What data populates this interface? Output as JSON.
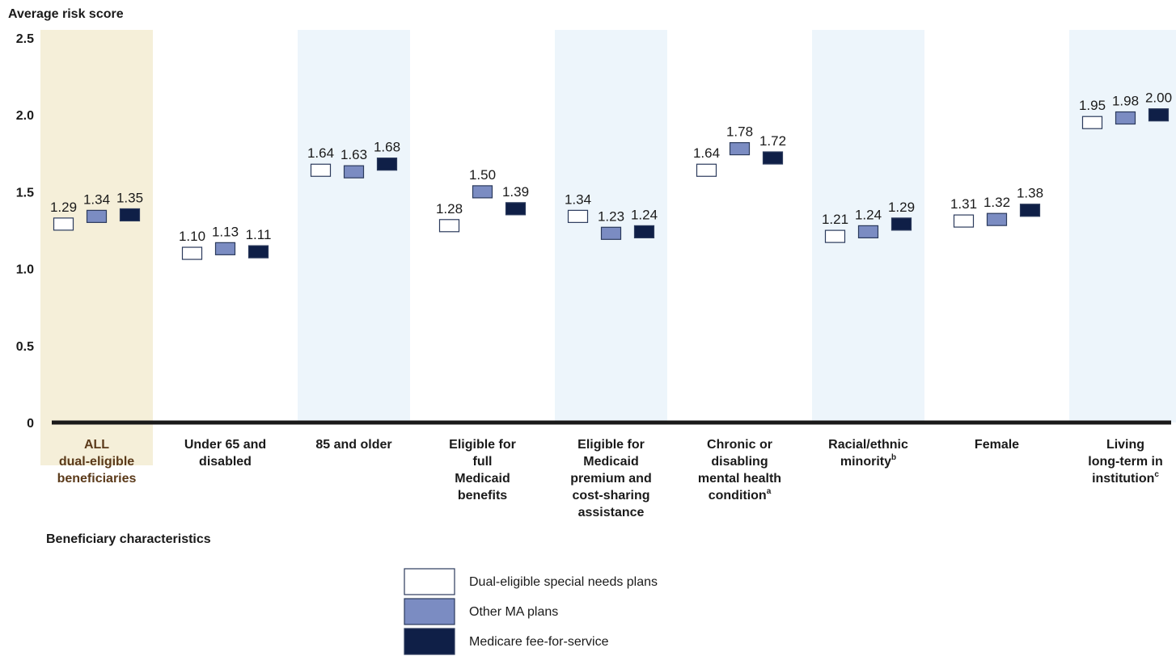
{
  "chart_data": {
    "type": "bar",
    "title": "",
    "ylabel": "Average risk score",
    "xlabel": "Beneficiary characteristics",
    "ylim": [
      0,
      2.5
    ],
    "yticks": [
      "0",
      "0.5",
      "1.0",
      "1.5",
      "2.0",
      "2.5"
    ],
    "grid": false,
    "legend_position": "bottom-center",
    "categories": [
      {
        "lines": [
          "ALL",
          "dual-eligible",
          "beneficiaries"
        ],
        "footnote": "",
        "highlight": "all"
      },
      {
        "lines": [
          "Under 65 and",
          "disabled"
        ],
        "footnote": "",
        "highlight": "none"
      },
      {
        "lines": [
          "85 and older"
        ],
        "footnote": "",
        "highlight": "shaded"
      },
      {
        "lines": [
          "Eligible for",
          "full",
          "Medicaid",
          "benefits"
        ],
        "footnote": "",
        "highlight": "none"
      },
      {
        "lines": [
          "Eligible for",
          "Medicaid",
          "premium and",
          "cost-sharing",
          "assistance"
        ],
        "footnote": "",
        "highlight": "shaded"
      },
      {
        "lines": [
          "Chronic or",
          "disabling",
          "mental health",
          "condition"
        ],
        "footnote": "a",
        "highlight": "none"
      },
      {
        "lines": [
          "Racial/ethnic",
          "minority"
        ],
        "footnote": "b",
        "highlight": "shaded"
      },
      {
        "lines": [
          "Female"
        ],
        "footnote": "",
        "highlight": "none"
      },
      {
        "lines": [
          "Living",
          "long-term in",
          "institution"
        ],
        "footnote": "c",
        "highlight": "shaded"
      }
    ],
    "series": [
      {
        "name": "Dual-eligible special needs plans",
        "color": "#ffffff",
        "values": [
          1.29,
          1.1,
          1.64,
          1.28,
          1.34,
          1.64,
          1.21,
          1.31,
          1.95
        ],
        "labels": [
          "1.29",
          "1.10",
          "1.64",
          "1.28",
          "1.34",
          "1.64",
          "1.21",
          "1.31",
          "1.95"
        ]
      },
      {
        "name": "Other MA plans",
        "color": "#7b8cc2",
        "values": [
          1.34,
          1.13,
          1.63,
          1.5,
          1.23,
          1.78,
          1.24,
          1.32,
          1.98
        ],
        "labels": [
          "1.34",
          "1.13",
          "1.63",
          "1.50",
          "1.23",
          "1.78",
          "1.24",
          "1.32",
          "1.98"
        ]
      },
      {
        "name": "Medicare fee-for-service",
        "color": "#0f1f47",
        "values": [
          1.35,
          1.11,
          1.68,
          1.39,
          1.24,
          1.72,
          1.29,
          1.38,
          2.0
        ],
        "labels": [
          "1.35",
          "1.11",
          "1.68",
          "1.39",
          "1.24",
          "1.72",
          "1.29",
          "1.38",
          "2.00"
        ]
      }
    ],
    "colors": {
      "highlight_all": "#f5efd9",
      "highlight_shaded": "#edf5fb",
      "axis": "#1a1a1a",
      "all_label": "#5b3a1a",
      "text": "#1a1a1a"
    }
  }
}
